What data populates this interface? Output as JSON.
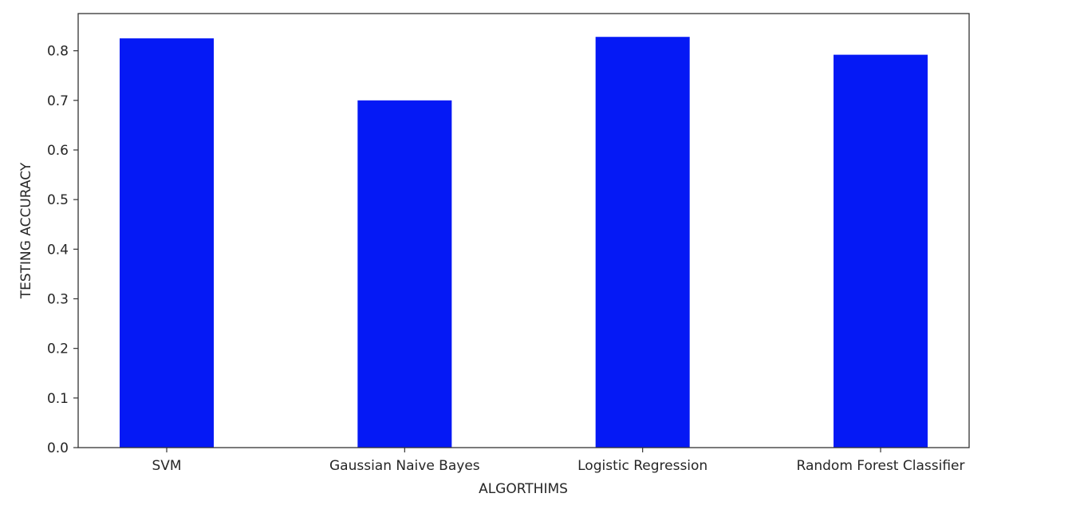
{
  "chart_data": {
    "type": "bar",
    "categories": [
      "SVM",
      "Gaussian Naive Bayes",
      "Logistic Regression",
      "Random Forest Classifier"
    ],
    "values": [
      0.825,
      0.7,
      0.828,
      0.792
    ],
    "title": "",
    "xlabel": "ALGORTHIMS",
    "ylabel": "TESTING ACCURACY",
    "ylim": [
      0.0,
      0.875
    ],
    "yticks": [
      "0.0",
      "0.1",
      "0.2",
      "0.3",
      "0.4",
      "0.5",
      "0.6",
      "0.7",
      "0.8"
    ],
    "bar_color": "#0519F5",
    "grid": false,
    "legend": "none"
  }
}
